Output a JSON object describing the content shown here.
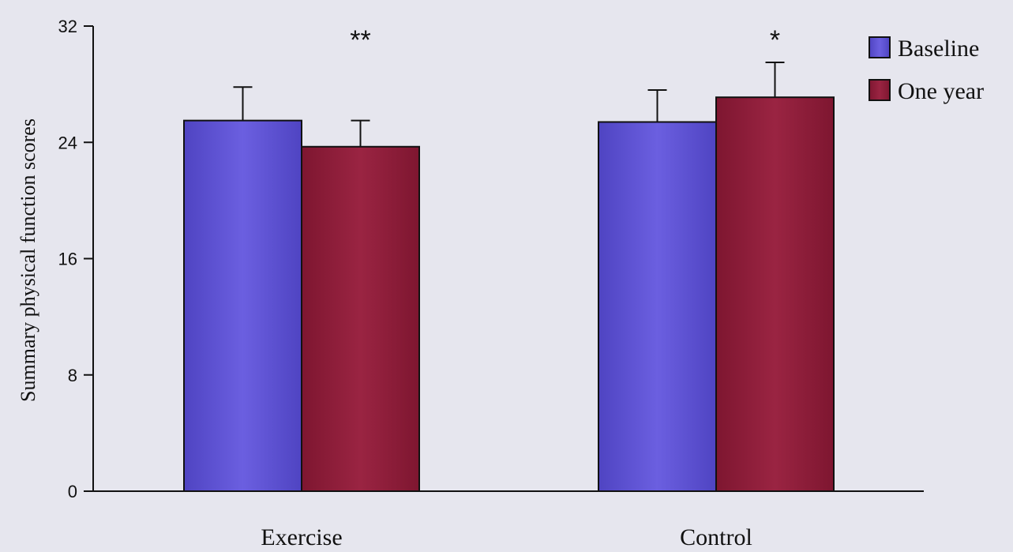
{
  "chart_data": {
    "type": "bar",
    "title": "",
    "xlabel": "",
    "ylabel": "Summary physical function scores",
    "ylim": [
      0,
      32
    ],
    "yticks": [
      0,
      8,
      16,
      24,
      32
    ],
    "categories": [
      "Exercise",
      "Control"
    ],
    "series": [
      {
        "name": "Baseline",
        "color": "#5a4fcf",
        "values": [
          25.5,
          25.4
        ],
        "error": [
          2.3,
          2.2
        ]
      },
      {
        "name": "One year",
        "color": "#8e1c38",
        "values": [
          23.7,
          27.1
        ],
        "error": [
          1.8,
          2.4
        ]
      }
    ],
    "annotations": [
      "**",
      "*"
    ],
    "legend_position": "top-right",
    "grid": false
  }
}
